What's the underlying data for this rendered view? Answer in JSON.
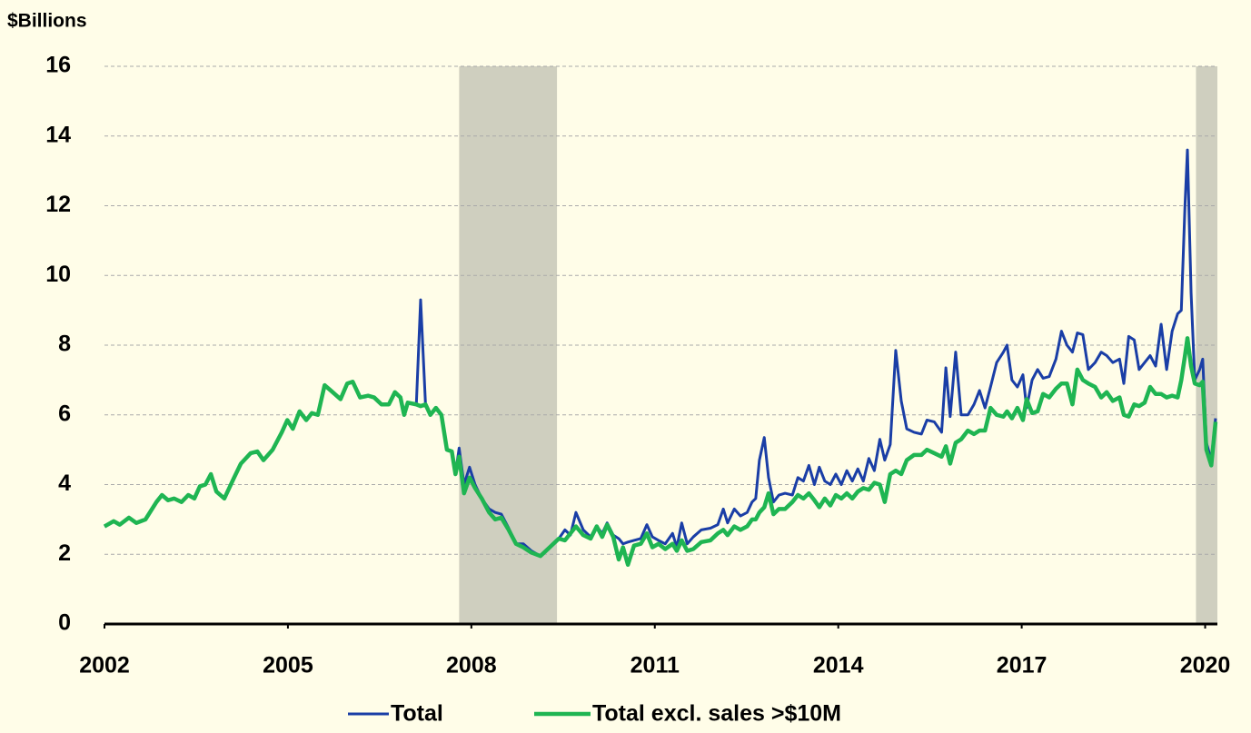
{
  "chart_data": {
    "type": "line",
    "y_axis_label": "$Billions",
    "xlim": [
      2002,
      2020.2
    ],
    "xticks": [
      2002,
      2005,
      2008,
      2011,
      2014,
      2017,
      2020
    ],
    "ylim": [
      0,
      16
    ],
    "yticks": [
      0,
      2,
      4,
      6,
      8,
      10,
      12,
      14,
      16
    ],
    "grid": true,
    "legend": "bottom",
    "shaded_regions": [
      [
        2007.8,
        2009.4
      ],
      [
        2019.85,
        2020.2
      ]
    ],
    "shade_color": "#cfcfbf",
    "x": [
      2002.0,
      2002.15,
      2002.25,
      2002.4,
      2002.52,
      2002.67,
      2002.85,
      2002.94,
      2003.04,
      2003.14,
      2003.26,
      2003.37,
      2003.47,
      2003.56,
      2003.65,
      2003.74,
      2003.83,
      2003.96,
      2004.12,
      2004.23,
      2004.39,
      2004.5,
      2004.6,
      2004.75,
      2004.9,
      2004.99,
      2005.08,
      2005.19,
      2005.3,
      2005.39,
      2005.49,
      2005.6,
      2005.7,
      2005.86,
      2005.97,
      2006.06,
      2006.18,
      2006.31,
      2006.41,
      2006.53,
      2006.65,
      2006.75,
      2006.84,
      2006.9,
      2006.96,
      2007.1,
      2007.17,
      2007.25,
      2007.33,
      2007.42,
      2007.51,
      2007.6,
      2007.68,
      2007.74,
      2007.8,
      2007.88,
      2007.97,
      2008.06,
      2008.17,
      2008.29,
      2008.39,
      2008.49,
      2008.61,
      2008.73,
      2008.85,
      2008.98,
      2009.13,
      2009.28,
      2009.43,
      2009.53,
      2009.62,
      2009.71,
      2009.83,
      2009.95,
      2010.05,
      2010.14,
      2010.22,
      2010.32,
      2010.41,
      2010.48,
      2010.56,
      2010.66,
      2010.77,
      2010.87,
      2010.96,
      2011.06,
      2011.17,
      2011.29,
      2011.36,
      2011.44,
      2011.53,
      2011.63,
      2011.76,
      2011.91,
      2012.03,
      2012.12,
      2012.19,
      2012.3,
      2012.4,
      2012.51,
      2012.59,
      2012.65,
      2012.71,
      2012.79,
      2012.86,
      2012.94,
      2013.03,
      2013.13,
      2013.25,
      2013.34,
      2013.43,
      2013.52,
      2013.61,
      2013.69,
      2013.78,
      2013.87,
      2013.96,
      2014.05,
      2014.14,
      2014.23,
      2014.32,
      2014.41,
      2014.5,
      2014.59,
      2014.68,
      2014.76,
      2014.85,
      2014.94,
      2015.03,
      2015.12,
      2015.24,
      2015.36,
      2015.45,
      2015.57,
      2015.69,
      2015.76,
      2015.83,
      2015.92,
      2016.01,
      2016.12,
      2016.22,
      2016.31,
      2016.4,
      2016.49,
      2016.59,
      2016.7,
      2016.76,
      2016.84,
      2016.93,
      2017.02,
      2017.08,
      2017.17,
      2017.26,
      2017.35,
      2017.45,
      2017.56,
      2017.65,
      2017.74,
      2017.83,
      2017.91,
      2018.0,
      2018.09,
      2018.2,
      2018.3,
      2018.39,
      2018.49,
      2018.6,
      2018.67,
      2018.75,
      2018.84,
      2018.92,
      2019.01,
      2019.1,
      2019.19,
      2019.28,
      2019.37,
      2019.46,
      2019.55,
      2019.61,
      2019.67,
      2019.71,
      2019.77,
      2019.83,
      2019.91,
      2019.96,
      2020.02,
      2020.1,
      2020.17
    ],
    "series": [
      {
        "name": "Total",
        "color": "#1a3ea6",
        "width": 3,
        "values": [
          2.8,
          2.95,
          2.85,
          3.05,
          2.9,
          3.0,
          3.5,
          3.7,
          3.55,
          3.6,
          3.5,
          3.7,
          3.6,
          3.95,
          4.0,
          4.3,
          3.8,
          3.6,
          4.2,
          4.6,
          4.9,
          4.95,
          4.7,
          5.0,
          5.5,
          5.85,
          5.6,
          6.1,
          5.85,
          6.05,
          6.0,
          6.85,
          6.7,
          6.45,
          6.9,
          6.95,
          6.5,
          6.55,
          6.5,
          6.3,
          6.3,
          6.65,
          6.5,
          6.0,
          6.35,
          6.3,
          9.3,
          6.3,
          6.0,
          6.2,
          6.0,
          5.0,
          4.95,
          4.3,
          5.05,
          4.0,
          4.5,
          4.0,
          3.6,
          3.3,
          3.2,
          3.15,
          2.75,
          2.3,
          2.3,
          2.1,
          1.95,
          2.2,
          2.45,
          2.7,
          2.55,
          3.2,
          2.7,
          2.5,
          2.8,
          2.6,
          2.9,
          2.55,
          2.45,
          2.3,
          2.35,
          2.4,
          2.45,
          2.85,
          2.5,
          2.4,
          2.3,
          2.6,
          2.2,
          2.9,
          2.3,
          2.5,
          2.7,
          2.75,
          2.85,
          3.3,
          2.9,
          3.3,
          3.1,
          3.2,
          3.5,
          3.6,
          4.7,
          5.35,
          4.2,
          3.5,
          3.7,
          3.75,
          3.7,
          4.2,
          4.1,
          4.55,
          4.0,
          4.5,
          4.1,
          4.0,
          4.3,
          4.0,
          4.4,
          4.1,
          4.45,
          4.1,
          4.75,
          4.4,
          5.3,
          4.7,
          5.15,
          7.85,
          6.4,
          5.6,
          5.5,
          5.45,
          5.85,
          5.8,
          5.5,
          7.35,
          5.95,
          7.8,
          6.0,
          6.0,
          6.3,
          6.7,
          6.2,
          6.8,
          7.5,
          7.8,
          8.0,
          7.0,
          6.8,
          7.15,
          6.2,
          7.0,
          7.3,
          7.05,
          7.1,
          7.6,
          8.4,
          8.0,
          7.8,
          8.35,
          8.3,
          7.3,
          7.5,
          7.8,
          7.7,
          7.5,
          7.6,
          6.9,
          8.25,
          8.15,
          7.3,
          7.5,
          7.7,
          7.4,
          8.6,
          7.3,
          8.4,
          8.9,
          9.0,
          12.0,
          13.6,
          9.5,
          7.0,
          7.3,
          7.6,
          5.2,
          4.7,
          5.9
        ]
      },
      {
        "name": "Total excl. sales >$10M",
        "color": "#1fb552",
        "width": 4.5,
        "values": [
          2.8,
          2.95,
          2.85,
          3.05,
          2.9,
          3.0,
          3.5,
          3.7,
          3.55,
          3.6,
          3.5,
          3.7,
          3.6,
          3.95,
          4.0,
          4.3,
          3.8,
          3.6,
          4.2,
          4.6,
          4.9,
          4.95,
          4.7,
          5.0,
          5.5,
          5.85,
          5.6,
          6.1,
          5.85,
          6.05,
          6.0,
          6.85,
          6.7,
          6.45,
          6.9,
          6.95,
          6.5,
          6.55,
          6.5,
          6.3,
          6.3,
          6.65,
          6.5,
          6.0,
          6.35,
          6.3,
          6.25,
          6.3,
          6.0,
          6.2,
          6.0,
          5.0,
          4.95,
          4.3,
          4.8,
          3.75,
          4.2,
          3.9,
          3.6,
          3.2,
          3.0,
          3.05,
          2.7,
          2.3,
          2.2,
          2.05,
          1.95,
          2.2,
          2.45,
          2.4,
          2.6,
          2.8,
          2.55,
          2.45,
          2.8,
          2.5,
          2.85,
          2.5,
          1.85,
          2.2,
          1.7,
          2.25,
          2.3,
          2.6,
          2.2,
          2.3,
          2.15,
          2.3,
          2.1,
          2.4,
          2.1,
          2.15,
          2.35,
          2.4,
          2.6,
          2.7,
          2.55,
          2.8,
          2.7,
          2.8,
          3.0,
          3.0,
          3.2,
          3.35,
          3.75,
          3.15,
          3.3,
          3.3,
          3.5,
          3.7,
          3.6,
          3.75,
          3.55,
          3.35,
          3.6,
          3.4,
          3.7,
          3.6,
          3.75,
          3.6,
          3.8,
          3.9,
          3.85,
          4.05,
          4.0,
          3.5,
          4.3,
          4.4,
          4.3,
          4.7,
          4.85,
          4.85,
          5.0,
          4.9,
          4.8,
          5.1,
          4.6,
          5.2,
          5.3,
          5.55,
          5.45,
          5.55,
          5.55,
          6.2,
          6.0,
          5.95,
          6.1,
          5.9,
          6.2,
          5.85,
          6.45,
          6.05,
          6.1,
          6.6,
          6.5,
          6.75,
          6.9,
          6.9,
          6.3,
          7.3,
          7.0,
          6.9,
          6.8,
          6.5,
          6.65,
          6.4,
          6.5,
          6.0,
          5.95,
          6.3,
          6.25,
          6.35,
          6.8,
          6.6,
          6.6,
          6.5,
          6.55,
          6.5,
          7.0,
          7.7,
          8.2,
          7.4,
          6.9,
          6.85,
          6.95,
          5.0,
          4.55,
          5.8
        ]
      }
    ]
  }
}
